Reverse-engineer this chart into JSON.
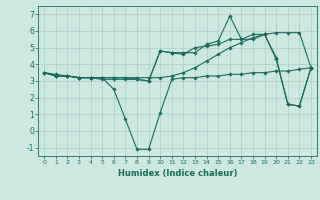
{
  "xlabel": "Humidex (Indice chaleur)",
  "background_color": "#cce8e0",
  "grid_color": "#aacfc8",
  "line_color": "#1a6b5e",
  "xlim": [
    -0.5,
    23.5
  ],
  "ylim": [
    -1.5,
    7.5
  ],
  "xticks": [
    0,
    1,
    2,
    3,
    4,
    5,
    6,
    7,
    8,
    9,
    10,
    11,
    12,
    13,
    14,
    15,
    16,
    17,
    18,
    19,
    20,
    21,
    22,
    23
  ],
  "yticks": [
    -1,
    0,
    1,
    2,
    3,
    4,
    5,
    6,
    7
  ],
  "series": [
    [
      3.5,
      3.4,
      3.3,
      3.2,
      3.2,
      3.2,
      3.2,
      3.2,
      3.1,
      3.0,
      4.8,
      4.7,
      4.7,
      4.7,
      5.2,
      5.4,
      6.9,
      5.5,
      5.5,
      5.8,
      4.3,
      1.6,
      1.5,
      3.8
    ],
    [
      3.5,
      3.3,
      3.3,
      3.2,
      3.2,
      3.2,
      2.5,
      0.7,
      -1.1,
      -1.1,
      1.1,
      3.1,
      3.2,
      3.2,
      3.3,
      3.3,
      3.4,
      3.4,
      3.5,
      3.5,
      3.6,
      3.6,
      3.7,
      3.8
    ],
    [
      3.5,
      3.3,
      3.3,
      3.2,
      3.2,
      3.2,
      3.2,
      3.2,
      3.2,
      3.2,
      3.2,
      3.3,
      3.5,
      3.8,
      4.2,
      4.6,
      5.0,
      5.3,
      5.6,
      5.8,
      5.9,
      5.9,
      5.9,
      3.8
    ],
    [
      3.5,
      3.3,
      3.3,
      3.2,
      3.2,
      3.1,
      3.1,
      3.1,
      3.1,
      3.0,
      4.8,
      4.7,
      4.6,
      5.0,
      5.1,
      5.2,
      5.5,
      5.5,
      5.8,
      5.8,
      4.4,
      1.6,
      1.5,
      3.8
    ]
  ]
}
